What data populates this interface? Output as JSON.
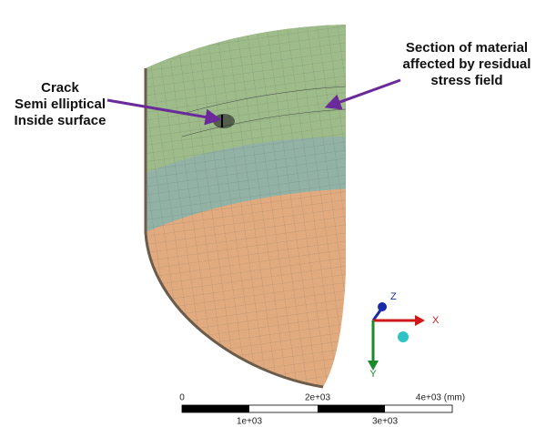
{
  "annotations": {
    "crack": [
      "Crack",
      "Semi elliptical",
      "Inside surface"
    ],
    "section": [
      "Section of material",
      "affected by residual",
      "stress field"
    ]
  },
  "triad": {
    "z": "Z",
    "x": "X",
    "y": "Y"
  },
  "scale_bar": {
    "top": [
      "0",
      "2e+03",
      "4e+03 (mm)"
    ],
    "bottom": [
      "1e+03",
      "3e+03"
    ]
  }
}
